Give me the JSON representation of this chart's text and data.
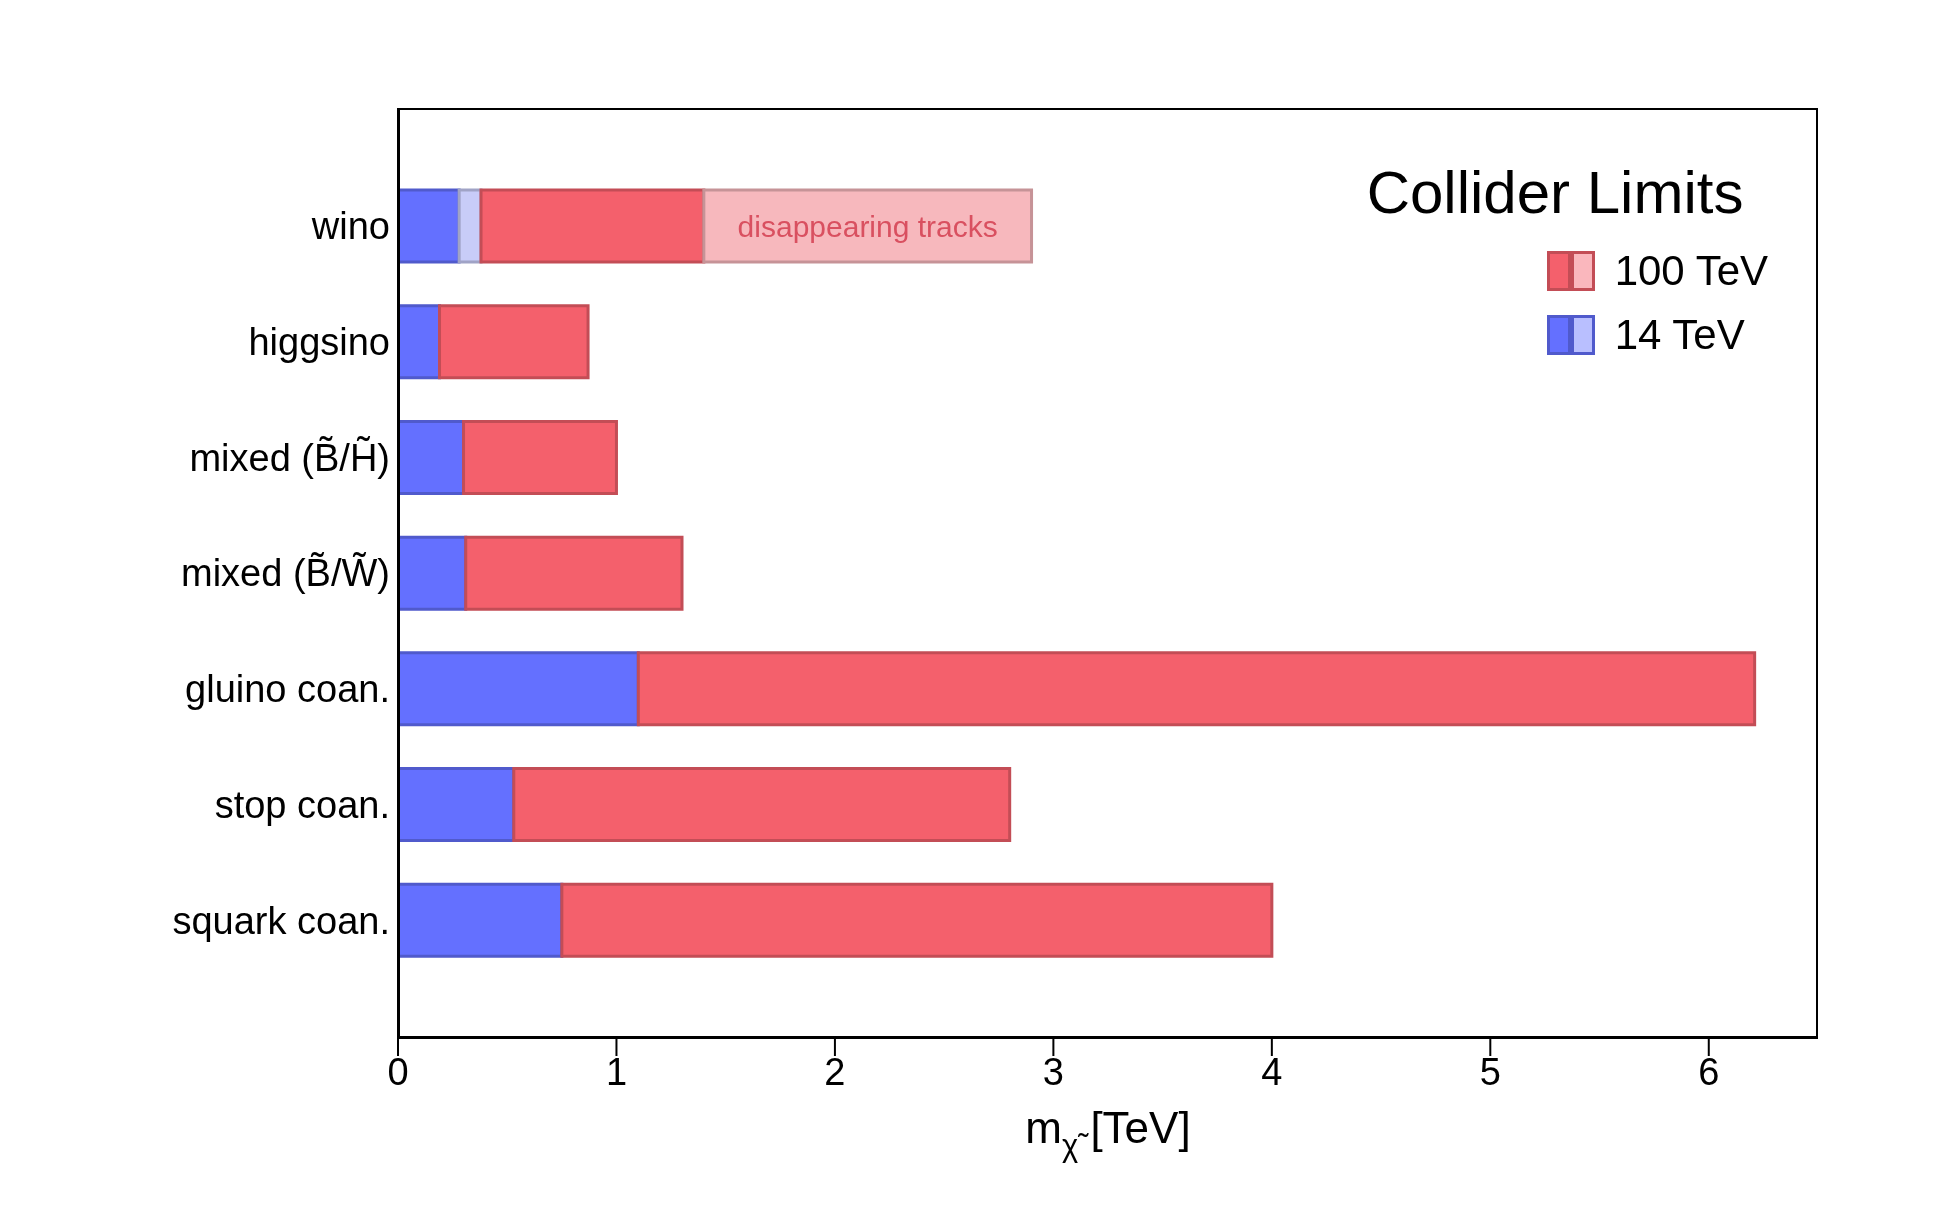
{
  "chart_data": {
    "type": "bar",
    "orientation": "horizontal",
    "stacked": true,
    "legend_title": "Collider Limits",
    "xlabel": "m$_{χ̃}$ [TeV]",
    "categories": [
      "wino",
      "higgsino",
      "mixed (B̃/H̃)",
      "mixed (B̃/W̃)",
      "gluino coan.",
      "stop coan.",
      "squark coan."
    ],
    "series": [
      {
        "name": "14 TeV",
        "color": "#6470ff",
        "values": [
          0.28,
          0.19,
          0.3,
          0.31,
          1.1,
          0.53,
          0.75
        ]
      },
      {
        "color": "#c8ccf8",
        "values": [
          0.1,
          null,
          null,
          null,
          null,
          null,
          null
        ]
      },
      {
        "name": "100 TeV",
        "color": "#f4606c",
        "values": [
          1.02,
          0.68,
          0.7,
          0.99,
          5.11,
          2.27,
          3.25
        ]
      },
      {
        "color": "#f7b8bd",
        "values": [
          1.5,
          null,
          null,
          null,
          null,
          null,
          null
        ]
      }
    ],
    "annotations": [
      "disappearing tracks"
    ],
    "xlim": [
      0,
      6.5
    ],
    "xticks": [
      0,
      1,
      2,
      3,
      4,
      5,
      6
    ],
    "legend": "top right"
  }
}
